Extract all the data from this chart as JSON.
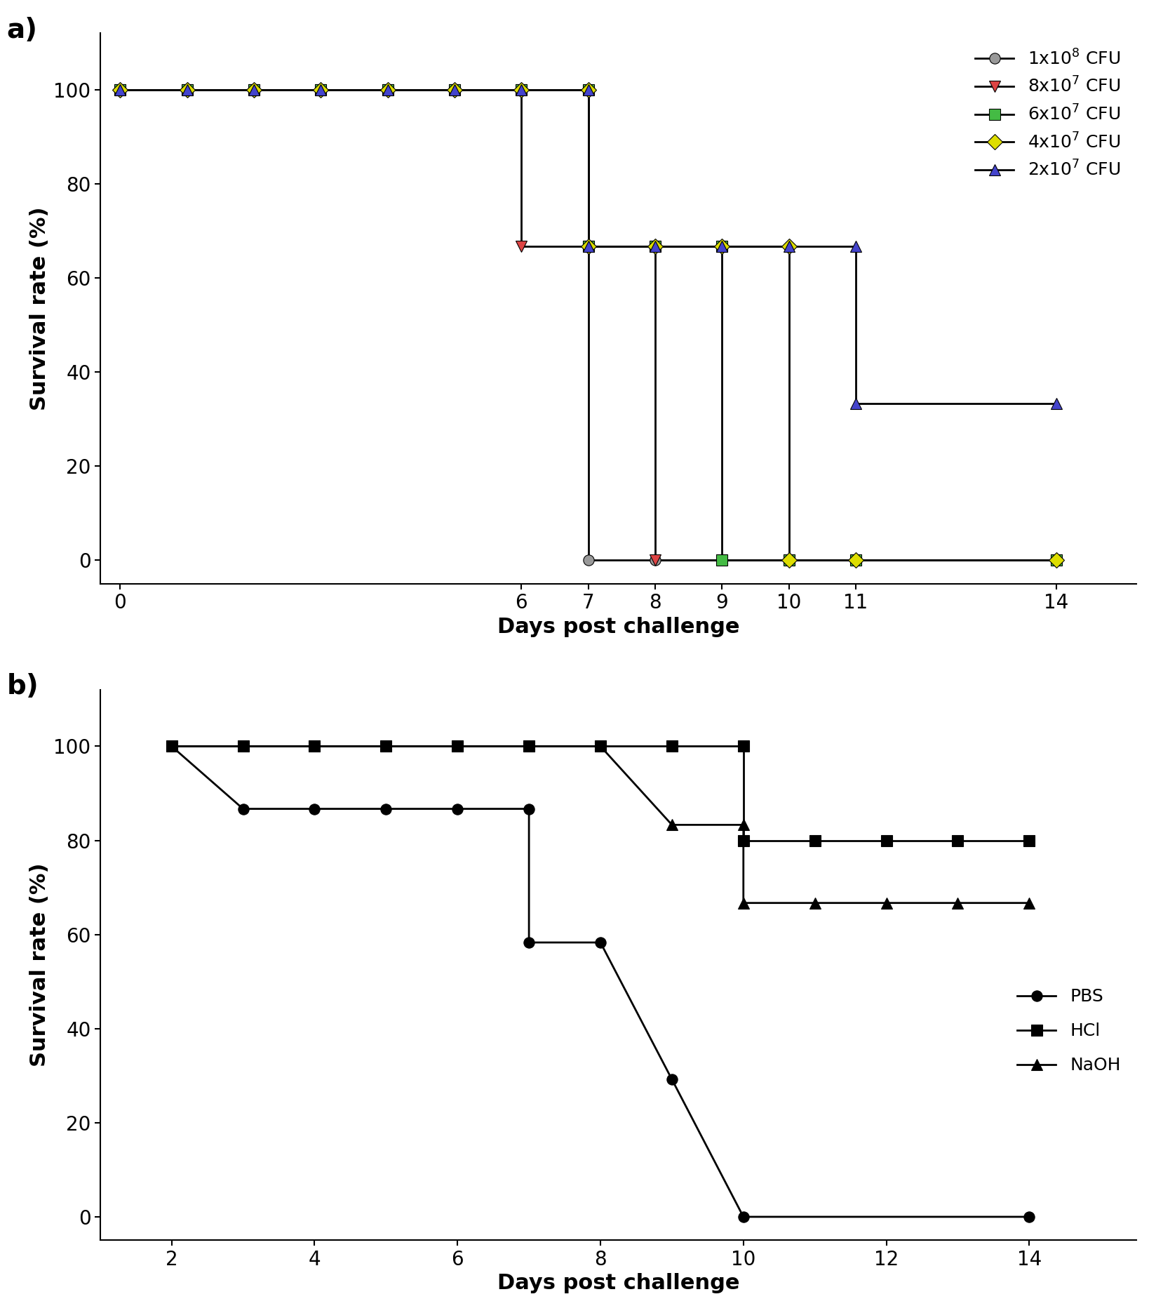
{
  "panel_a": {
    "series": [
      {
        "label": "1x10$^8$ CFU",
        "marker_color": "#999999",
        "marker": "o",
        "markersize": 11,
        "x": [
          0,
          1,
          2,
          3,
          4,
          5,
          6,
          7,
          7,
          8,
          9,
          10,
          11,
          14
        ],
        "y": [
          100,
          100,
          100,
          100,
          100,
          100,
          100,
          100,
          0,
          0,
          0,
          0,
          0,
          0
        ]
      },
      {
        "label": "8x10$^7$ CFU",
        "marker_color": "#dd4444",
        "marker": "v",
        "markersize": 11,
        "x": [
          0,
          1,
          2,
          3,
          4,
          5,
          6,
          6,
          7,
          8,
          8,
          9,
          10,
          11,
          14
        ],
        "y": [
          100,
          100,
          100,
          100,
          100,
          100,
          100,
          66.7,
          66.7,
          66.7,
          0,
          0,
          0,
          0,
          0
        ]
      },
      {
        "label": "6x10$^7$ CFU",
        "marker_color": "#44bb44",
        "marker": "s",
        "markersize": 11,
        "x": [
          0,
          1,
          2,
          3,
          4,
          5,
          6,
          7,
          7,
          8,
          9,
          9,
          10,
          11,
          14
        ],
        "y": [
          100,
          100,
          100,
          100,
          100,
          100,
          100,
          100,
          66.7,
          66.7,
          66.7,
          0,
          0,
          0,
          0
        ]
      },
      {
        "label": "4x10$^7$ CFU",
        "marker_color": "#dddd00",
        "marker": "D",
        "markersize": 11,
        "x": [
          0,
          1,
          2,
          3,
          4,
          5,
          6,
          7,
          7,
          8,
          9,
          10,
          10,
          11,
          14
        ],
        "y": [
          100,
          100,
          100,
          100,
          100,
          100,
          100,
          100,
          66.7,
          66.7,
          66.7,
          66.7,
          0,
          0,
          0
        ]
      },
      {
        "label": "2x10$^7$ CFU",
        "marker_color": "#4444cc",
        "marker": "^",
        "markersize": 11,
        "x": [
          0,
          1,
          2,
          3,
          4,
          5,
          6,
          7,
          7,
          8,
          9,
          10,
          11,
          11,
          14
        ],
        "y": [
          100,
          100,
          100,
          100,
          100,
          100,
          100,
          100,
          66.7,
          66.7,
          66.7,
          66.7,
          66.7,
          33.3,
          33.3
        ]
      }
    ],
    "xlabel": "Days post challenge",
    "ylabel": "Survival rate (%)",
    "xticks": [
      0,
      6,
      7,
      8,
      9,
      10,
      11,
      14
    ],
    "yticks": [
      0,
      20,
      40,
      60,
      80,
      100
    ],
    "xlim": [
      -0.3,
      15.2
    ],
    "ylim": [
      -5,
      112
    ]
  },
  "panel_b": {
    "series": [
      {
        "label": "PBS",
        "marker": "o",
        "markersize": 11,
        "x": [
          2,
          3,
          4,
          5,
          6,
          7,
          7,
          8,
          9,
          10,
          14
        ],
        "y": [
          100,
          86.7,
          86.7,
          86.7,
          86.7,
          86.7,
          58.3,
          58.3,
          29.2,
          0,
          0
        ]
      },
      {
        "label": "HCl",
        "marker": "s",
        "markersize": 11,
        "x": [
          2,
          3,
          4,
          5,
          6,
          7,
          8,
          9,
          10,
          10,
          11,
          12,
          13,
          14
        ],
        "y": [
          100,
          100,
          100,
          100,
          100,
          100,
          100,
          100,
          100,
          80,
          80,
          80,
          80,
          80
        ]
      },
      {
        "label": "NaOH",
        "marker": "^",
        "markersize": 11,
        "x": [
          2,
          3,
          4,
          5,
          6,
          7,
          8,
          9,
          10,
          10,
          11,
          12,
          13,
          14
        ],
        "y": [
          100,
          100,
          100,
          100,
          100,
          100,
          100,
          83.3,
          83.3,
          66.7,
          66.7,
          66.7,
          66.7,
          66.7
        ]
      }
    ],
    "xlabel": "Days post challenge",
    "ylabel": "Survival rate (%)",
    "xticks": [
      2,
      4,
      6,
      8,
      10,
      12,
      14
    ],
    "yticks": [
      0,
      20,
      40,
      60,
      80,
      100
    ],
    "xlim": [
      1.0,
      15.5
    ],
    "ylim": [
      -5,
      112
    ]
  },
  "line_color": "#000000",
  "line_width": 2.0,
  "label_fontsize": 22,
  "tick_fontsize": 20,
  "legend_fontsize": 18,
  "panel_label_fontsize": 28
}
